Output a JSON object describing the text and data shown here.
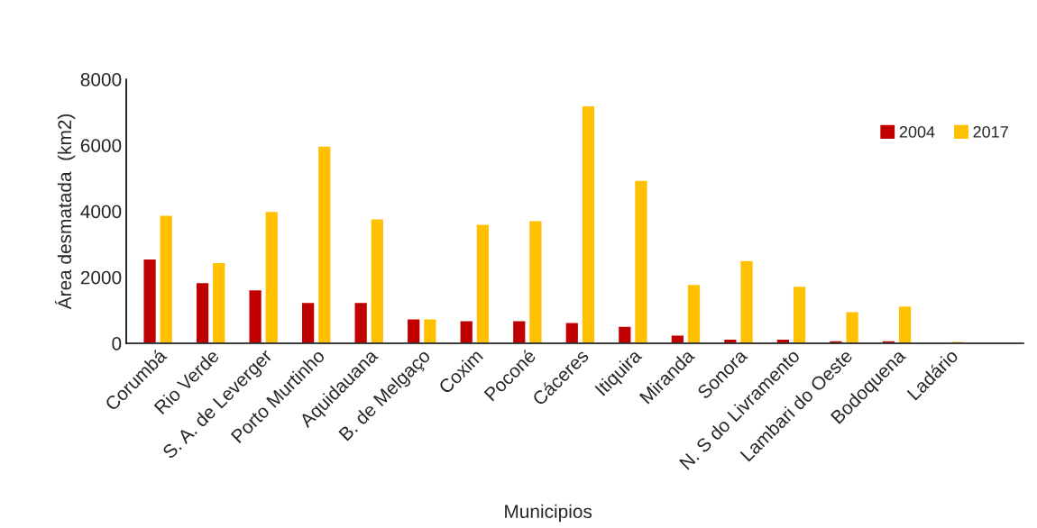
{
  "chart_data": {
    "type": "bar",
    "xlabel": "Municipios",
    "ylabel": "Área desmatada  (km2)",
    "categories": [
      "Corumbá",
      "Rio Verde",
      "S. A. de Leverger",
      "Porto Murtinho",
      "Aquidauana",
      "B. de Melgaço",
      "Coxim",
      "Poconé",
      "Cáceres",
      "Itiquira",
      "Miranda",
      "Sonora",
      "N. S do Livramento",
      "Lambari do Oeste",
      "Bodoquena",
      "Ladário"
    ],
    "series": [
      {
        "name": "2004",
        "color": "#c00000",
        "values": [
          2560,
          1840,
          1620,
          1240,
          1240,
          740,
          690,
          690,
          630,
          520,
          250,
          130,
          130,
          80,
          80,
          null
        ]
      },
      {
        "name": "2017",
        "color": "#ffc000",
        "values": [
          3880,
          2450,
          4000,
          5980,
          3770,
          740,
          3610,
          3720,
          7200,
          4940,
          1790,
          2510,
          1730,
          960,
          1130,
          60
        ]
      }
    ],
    "ylim": [
      0,
      8000
    ],
    "yticks": [
      0,
      2000,
      4000,
      6000,
      8000
    ],
    "grid": false,
    "legend": "top right"
  }
}
